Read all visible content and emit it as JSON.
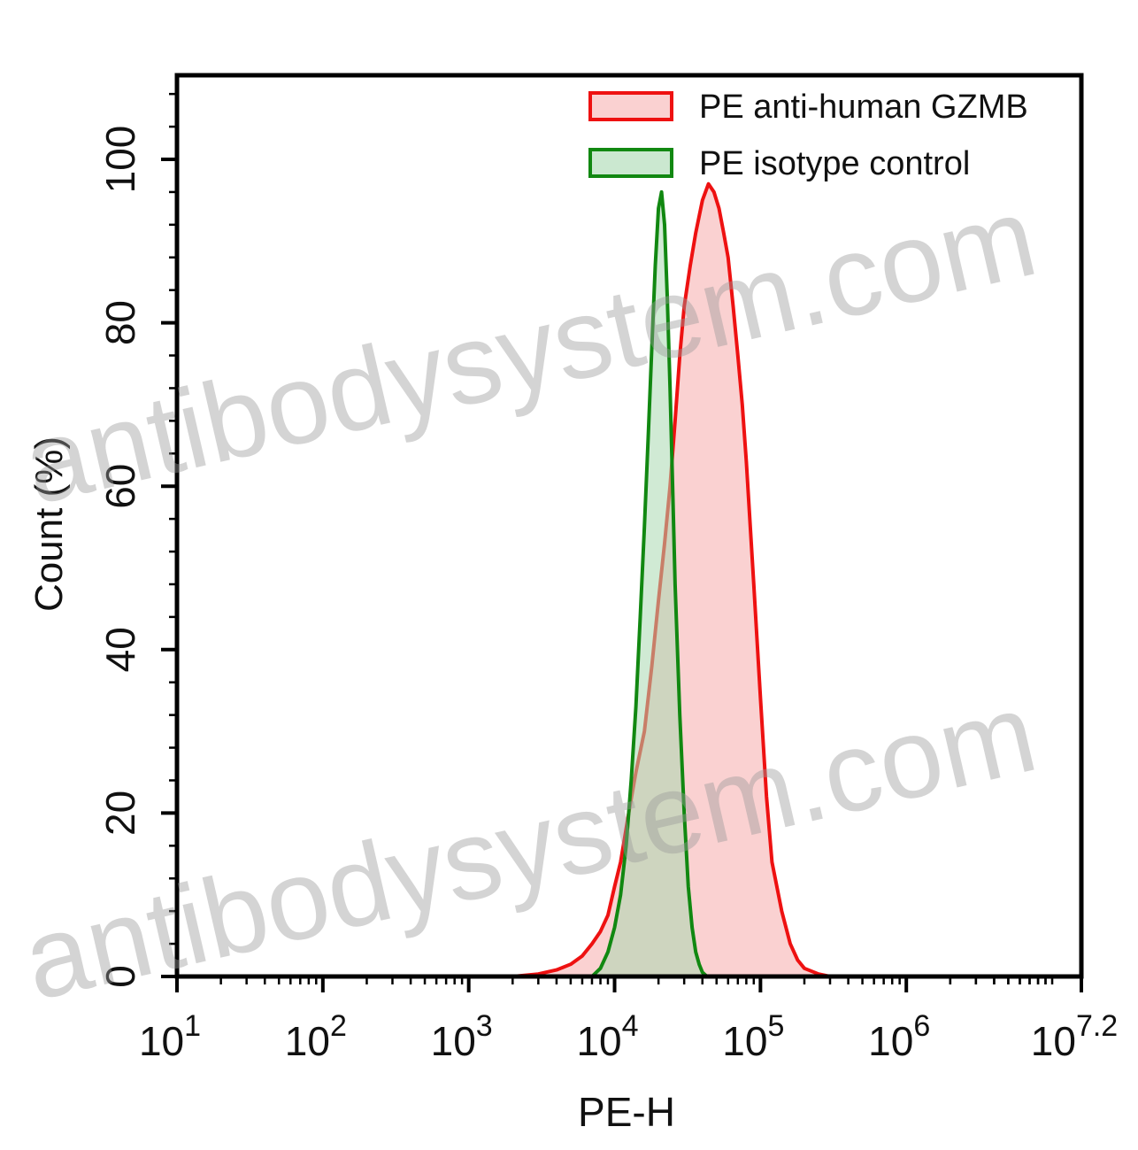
{
  "watermark_text": "antibodysystem.com",
  "chart_data": {
    "type": "area",
    "title": "",
    "xlabel": "PE-H",
    "ylabel": "Count (%)",
    "x_scale": "log10",
    "xlim": [
      10,
      15848932
    ],
    "ylim": [
      0,
      100
    ],
    "x_ticks": [
      {
        "value": 10,
        "base": "10",
        "exp": "1"
      },
      {
        "value": 100,
        "base": "10",
        "exp": "2"
      },
      {
        "value": 1000,
        "base": "10",
        "exp": "3"
      },
      {
        "value": 10000,
        "base": "10",
        "exp": "4"
      },
      {
        "value": 100000,
        "base": "10",
        "exp": "5"
      },
      {
        "value": 1000000,
        "base": "10",
        "exp": "6"
      },
      {
        "value": 15848932,
        "base": "10",
        "exp": "7.2"
      }
    ],
    "y_ticks": [
      "0",
      "20",
      "40",
      "60",
      "80",
      "100"
    ],
    "grid": false,
    "legend_position": "top-right",
    "series": [
      {
        "name": "PE anti-human GZMB",
        "stroke": "#ee1111",
        "fill": "#f7b3b3",
        "x": [
          2000,
          3000,
          4000,
          5000,
          6000,
          7000,
          8000,
          9000,
          10000,
          11000,
          12500,
          14000,
          16000,
          18000,
          20000,
          22000,
          24000,
          26000,
          28000,
          30000,
          33000,
          36000,
          40000,
          44000,
          48000,
          52000,
          56000,
          60000,
          65000,
          70000,
          75000,
          80000,
          90000,
          100000,
          110000,
          120000,
          140000,
          160000,
          180000,
          200000,
          250000,
          300000
        ],
        "y": [
          0,
          0.3,
          0.8,
          1.5,
          2.5,
          4,
          5.5,
          7.5,
          11,
          14,
          20,
          25,
          30,
          38,
          46,
          53,
          60,
          68,
          76,
          82,
          87,
          91,
          95,
          97,
          96,
          94,
          91,
          88,
          82,
          76,
          70,
          63,
          48,
          34,
          22,
          14,
          8,
          4,
          2,
          1,
          0.3,
          0
        ]
      },
      {
        "name": "PE isotype control",
        "stroke": "#118811",
        "fill": "#a9d9b1",
        "x": [
          7000,
          8000,
          9000,
          10000,
          11000,
          12000,
          13000,
          14000,
          15000,
          16000,
          17000,
          18000,
          19000,
          20000,
          21000,
          22000,
          23000,
          24000,
          25000,
          26000,
          28000,
          30000,
          32000,
          34000,
          36000,
          38000,
          40000,
          43000
        ],
        "y": [
          0,
          1,
          3,
          6,
          10,
          16,
          24,
          33,
          44,
          55,
          66,
          77,
          87,
          94,
          96,
          92,
          83,
          72,
          60,
          48,
          32,
          20,
          11,
          6,
          3,
          1.5,
          0.5,
          0
        ]
      }
    ]
  }
}
